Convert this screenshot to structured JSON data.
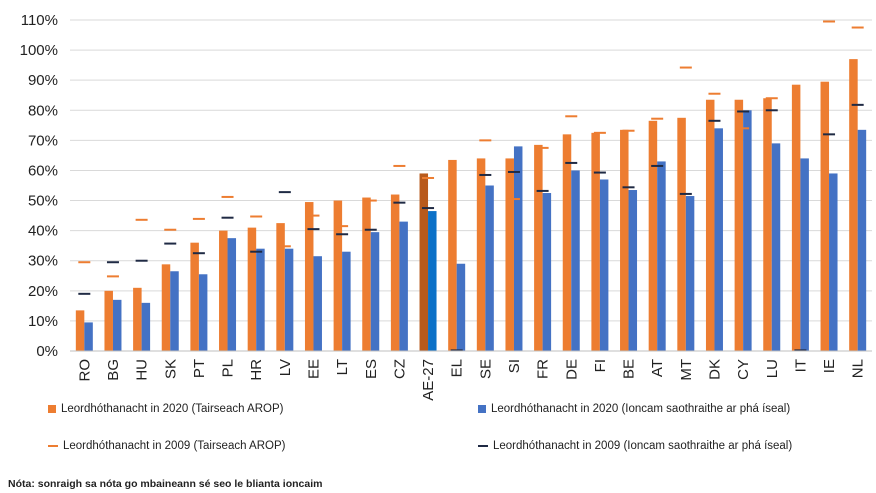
{
  "chart_data": {
    "type": "bar",
    "categories": [
      "RO",
      "BG",
      "HU",
      "SK",
      "PT",
      "PL",
      "HR",
      "LV",
      "EE",
      "LT",
      "ES",
      "CZ",
      "AE-27",
      "EL",
      "SE",
      "SI",
      "FR",
      "DE",
      "FI",
      "BE",
      "AT",
      "MT",
      "DK",
      "CY",
      "LU",
      "IT",
      "IE",
      "NL"
    ],
    "highlight_category": "AE-27",
    "series": [
      {
        "name": "Leordhóthanacht in 2020 (Tairseach AROP)",
        "kind": "bar",
        "color": "#ED7D31",
        "values": [
          13.5,
          20,
          21,
          28.8,
          36,
          40,
          41,
          42.5,
          49.5,
          50,
          51,
          52,
          59,
          63.5,
          64,
          64,
          68.5,
          72,
          72.5,
          73.5,
          76.5,
          77.5,
          83.5,
          83.5,
          84,
          88.5,
          89.5,
          97
        ]
      },
      {
        "name": "Leordhóthanacht in 2020 (Ioncam saothraithe ar phá íseal)",
        "kind": "bar",
        "color": "#4472C4",
        "values": [
          9.5,
          17,
          16,
          26.5,
          25.5,
          37.5,
          34,
          34,
          31.5,
          33,
          39.5,
          43,
          46.5,
          29,
          55,
          68,
          52.5,
          60,
          57,
          53.5,
          63,
          51.5,
          74,
          80,
          69,
          64,
          59,
          73.5
        ]
      },
      {
        "name": "Leordhóthanacht in 2009 (Tairseach AROP)",
        "kind": "dash",
        "color": "#ED7D31",
        "values": [
          29.5,
          24.8,
          43.6,
          40.3,
          43.9,
          51.2,
          44.7,
          34.8,
          45,
          41.5,
          50,
          61.5,
          57.5,
          null,
          70,
          50.5,
          67.5,
          78,
          72.5,
          73.2,
          77.2,
          94.2,
          85.5,
          74,
          84,
          null,
          109.5,
          107.5
        ]
      },
      {
        "name": "Leordhóthanacht in 2009 (Ioncam saothraithe ar phá íseal)",
        "kind": "dash",
        "color": "#1F2A44",
        "values": [
          19,
          29.5,
          30,
          35.7,
          32.5,
          44.3,
          33,
          52.8,
          40.5,
          38.8,
          40.3,
          49.3,
          47.5,
          0.2,
          58.5,
          59.5,
          53.2,
          62.5,
          59.3,
          54.4,
          61.5,
          52.2,
          76.5,
          79.6,
          80,
          0.2,
          72,
          81.8
        ]
      }
    ],
    "y_ticks": [
      "0%",
      "10%",
      "20%",
      "30%",
      "40%",
      "50%",
      "60%",
      "70%",
      "80%",
      "90%",
      "100%",
      "110%"
    ],
    "ylim": [
      0,
      110
    ],
    "grid": true,
    "legend_position": "bottom",
    "highlight_colors": {
      "bar_2020_arop": "#B85A1C",
      "bar_2020_low_wage": "#0B71C8"
    }
  },
  "legend": [
    {
      "label": "Leordhóthanacht in 2020 (Tairseach AROP)",
      "color": "#ED7D31",
      "marker": "box"
    },
    {
      "label": "Leordhóthanacht in 2020 (Ioncam saothraithe ar phá íseal)",
      "color": "#4472C4",
      "marker": "box"
    },
    {
      "label": "Leordhóthanacht in 2009 (Tairseach AROP)",
      "color": "#ED7D31",
      "marker": "dash"
    },
    {
      "label": "Leordhóthanacht in 2009 (Ioncam saothraithe ar phá íseal)",
      "color": "#1F2A44",
      "marker": "dash"
    }
  ],
  "note": "Nóta: sonraigh sa nóta go mbaineann sé seo le blianta ioncaim"
}
